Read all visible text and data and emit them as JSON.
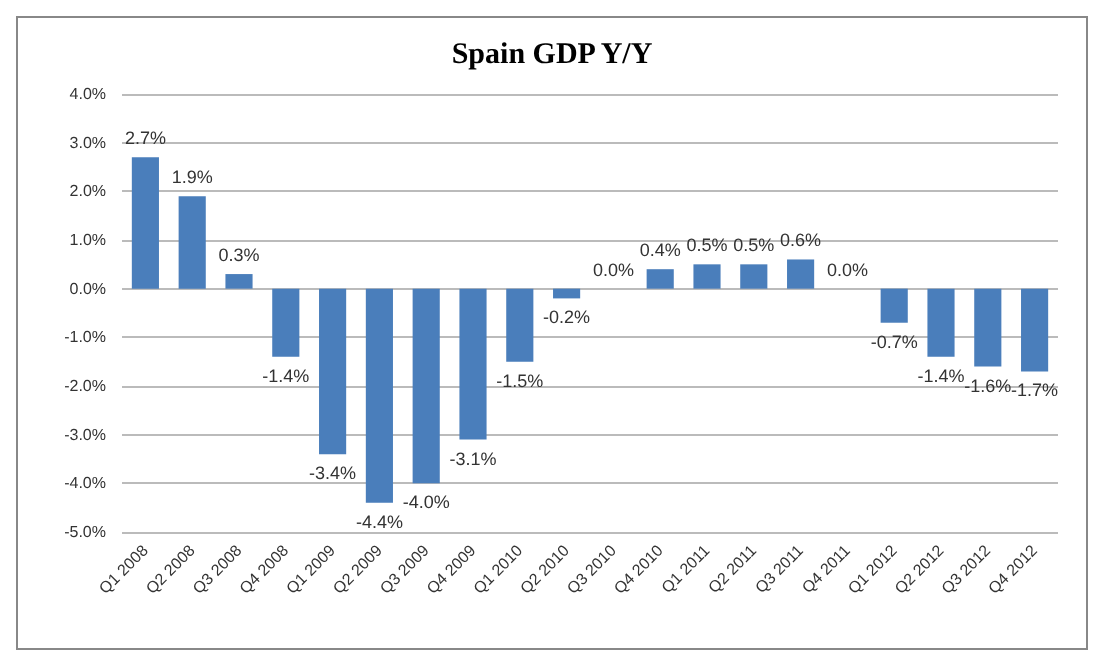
{
  "chart_data": {
    "type": "bar",
    "title": "Spain GDP Y/Y",
    "categories": [
      "Q1 2008",
      "Q2 2008",
      "Q3 2008",
      "Q4 2008",
      "Q1 2009",
      "Q2 2009",
      "Q3 2009",
      "Q4 2009",
      "Q1 2010",
      "Q2 2010",
      "Q3 2010",
      "Q4 2010",
      "Q1 2011",
      "Q2 2011",
      "Q3 2011",
      "Q4 2011",
      "Q1 2012",
      "Q2 2012",
      "Q3 2012",
      "Q4 2012"
    ],
    "values": [
      2.7,
      1.9,
      0.3,
      -1.4,
      -3.4,
      -4.4,
      -4.0,
      -3.1,
      -1.5,
      -0.2,
      0.0,
      0.4,
      0.5,
      0.5,
      0.6,
      0.0,
      -0.7,
      -1.4,
      -1.6,
      -1.7
    ],
    "value_labels": [
      "2.7%",
      "1.9%",
      "0.3%",
      "-1.4%",
      "-3.4%",
      "-4.4%",
      "-4.0%",
      "-3.1%",
      "-1.5%",
      "-0.2%",
      "0.0%",
      "0.4%",
      "0.5%",
      "0.5%",
      "0.6%",
      "0.0%",
      "-0.7%",
      "-1.4%",
      "-1.6%",
      "-1.7%"
    ],
    "color": "#4a7ebb",
    "ylim": [
      -5,
      4
    ],
    "yticks": [
      {
        "value": -5,
        "label": "-5.0%"
      },
      {
        "value": -4,
        "label": "-4.0%"
      },
      {
        "value": -3,
        "label": "-3.0%"
      },
      {
        "value": -2,
        "label": "-2.0%"
      },
      {
        "value": -1,
        "label": "-1.0%"
      },
      {
        "value": 0,
        "label": "0.0%"
      },
      {
        "value": 1,
        "label": "1.0%"
      },
      {
        "value": 2,
        "label": "2.0%"
      },
      {
        "value": 3,
        "label": "3.0%"
      },
      {
        "value": 4,
        "label": "4.0%"
      }
    ],
    "grid": true
  }
}
